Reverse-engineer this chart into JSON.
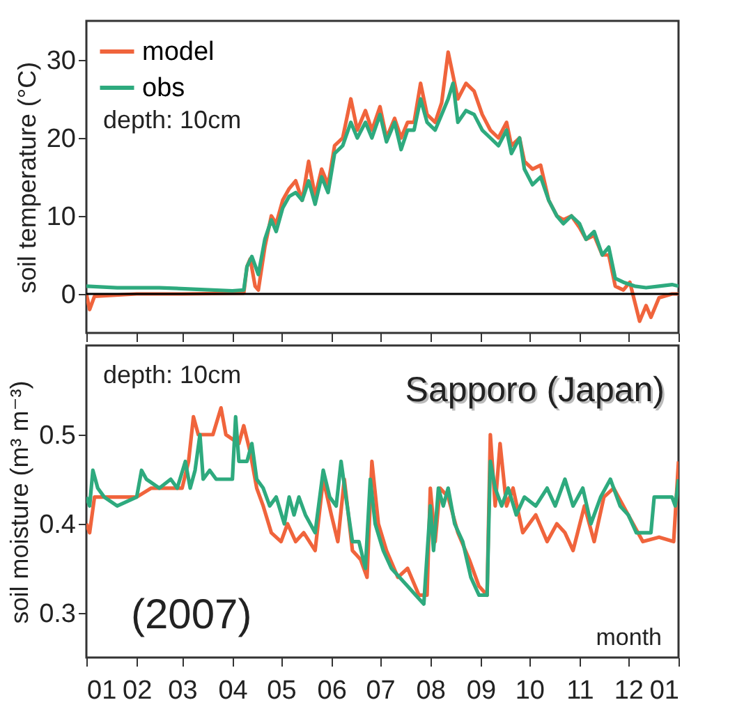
{
  "chart_data": [
    {
      "type": "line",
      "ylabel": "soil temperature (°C)",
      "ylim": [
        -5,
        35
      ],
      "yticks": [
        0,
        10,
        20,
        30
      ],
      "xlim": [
        "2007-01-01",
        "2008-01-01"
      ],
      "xticks": [
        {
          "value": "2007-01-01",
          "label": null
        },
        {
          "value": "2007-02-01",
          "label": null
        },
        {
          "value": "2007-03-01",
          "label": null
        },
        {
          "value": "2007-04-01",
          "label": null
        },
        {
          "value": "2007-05-01",
          "label": null
        },
        {
          "value": "2007-06-01",
          "label": null
        },
        {
          "value": "2007-07-01",
          "label": null
        },
        {
          "value": "2007-08-01",
          "label": null
        },
        {
          "value": "2007-09-01",
          "label": null
        },
        {
          "value": "2007-10-01",
          "label": null
        },
        {
          "value": "2007-11-01",
          "label": null
        },
        {
          "value": "2007-12-01",
          "label": null
        },
        {
          "value": "2008-01-01",
          "label": null
        }
      ],
      "tick_labels": "y",
      "grid": false,
      "legend": "top left",
      "annotations": [
        "depth: 10cm"
      ],
      "ref_lines": [
        {
          "axis": "y",
          "value": 0,
          "color": "#000000"
        }
      ],
      "series": [
        {
          "name": "model",
          "color": "#f0643c",
          "x": [
            "2007-01-01",
            "2007-01-03",
            "2007-01-06",
            "2007-02-01",
            "2007-03-01",
            "2007-04-08",
            "2007-04-10",
            "2007-04-12",
            "2007-04-15",
            "2007-04-17",
            "2007-04-21",
            "2007-04-25",
            "2007-04-28",
            "2007-05-02",
            "2007-05-06",
            "2007-05-10",
            "2007-05-14",
            "2007-05-18",
            "2007-05-22",
            "2007-05-26",
            "2007-05-30",
            "2007-06-03",
            "2007-06-08",
            "2007-06-13",
            "2007-06-17",
            "2007-06-22",
            "2007-06-26",
            "2007-07-01",
            "2007-07-05",
            "2007-07-10",
            "2007-07-14",
            "2007-07-18",
            "2007-07-22",
            "2007-07-26",
            "2007-07-30",
            "2007-08-04",
            "2007-08-08",
            "2007-08-12",
            "2007-08-15",
            "2007-08-18",
            "2007-08-23",
            "2007-08-28",
            "2007-09-02",
            "2007-09-07",
            "2007-09-12",
            "2007-09-17",
            "2007-09-20",
            "2007-09-25",
            "2007-09-28",
            "2007-10-03",
            "2007-10-08",
            "2007-10-13",
            "2007-10-18",
            "2007-10-22",
            "2007-10-27",
            "2007-11-01",
            "2007-11-05",
            "2007-11-10",
            "2007-11-15",
            "2007-11-19",
            "2007-11-23",
            "2007-11-28",
            "2007-12-02",
            "2007-12-05",
            "2007-12-08",
            "2007-12-12",
            "2007-12-15",
            "2007-12-20",
            "2007-12-28",
            "2008-01-01"
          ],
          "values": [
            0,
            -2,
            -0.3,
            0,
            0,
            0.1,
            3.5,
            4.5,
            1,
            0.5,
            6,
            10,
            9,
            12,
            13.5,
            14.5,
            12,
            17,
            12.5,
            16,
            14,
            19,
            20,
            25,
            21,
            23.5,
            21,
            24,
            20,
            22.5,
            20,
            22,
            22,
            27,
            23,
            22,
            24.5,
            31,
            28,
            25,
            27,
            26,
            23,
            21,
            20,
            22,
            19,
            20,
            17,
            16,
            16.5,
            12,
            10,
            9.5,
            10,
            8.5,
            7,
            7.5,
            5,
            5,
            1,
            0.5,
            1.5,
            -1,
            -3.5,
            -1.5,
            -3,
            -0.5,
            0,
            0
          ]
        },
        {
          "name": "obs",
          "color": "#2eaa7e",
          "x": [
            "2007-01-01",
            "2007-01-20",
            "2007-02-15",
            "2007-03-10",
            "2007-04-01",
            "2007-04-08",
            "2007-04-10",
            "2007-04-13",
            "2007-04-17",
            "2007-04-21",
            "2007-04-25",
            "2007-04-28",
            "2007-05-02",
            "2007-05-06",
            "2007-05-10",
            "2007-05-14",
            "2007-05-18",
            "2007-05-22",
            "2007-05-26",
            "2007-05-30",
            "2007-06-03",
            "2007-06-08",
            "2007-06-13",
            "2007-06-17",
            "2007-06-22",
            "2007-06-26",
            "2007-07-01",
            "2007-07-05",
            "2007-07-10",
            "2007-07-14",
            "2007-07-18",
            "2007-07-22",
            "2007-07-26",
            "2007-07-30",
            "2007-08-04",
            "2007-08-08",
            "2007-08-12",
            "2007-08-15",
            "2007-08-18",
            "2007-08-23",
            "2007-08-28",
            "2007-09-02",
            "2007-09-07",
            "2007-09-12",
            "2007-09-17",
            "2007-09-20",
            "2007-09-25",
            "2007-09-28",
            "2007-10-03",
            "2007-10-08",
            "2007-10-13",
            "2007-10-18",
            "2007-10-22",
            "2007-10-27",
            "2007-11-01",
            "2007-11-05",
            "2007-11-10",
            "2007-11-15",
            "2007-11-19",
            "2007-11-23",
            "2007-11-28",
            "2007-12-05",
            "2007-12-12",
            "2007-12-20",
            "2007-12-28",
            "2008-01-01"
          ],
          "values": [
            1,
            0.8,
            0.8,
            0.6,
            0.4,
            0.5,
            3.5,
            4.8,
            2.5,
            7,
            9.5,
            8,
            11,
            12.5,
            13,
            12,
            14.5,
            11.5,
            15,
            13,
            18,
            19,
            22,
            20,
            22,
            20,
            23,
            19.5,
            22,
            18.5,
            21,
            21,
            25,
            22,
            21,
            23,
            25,
            27,
            22,
            23.5,
            23,
            21,
            20,
            19,
            21,
            18,
            20,
            16,
            14,
            15,
            12,
            10,
            9,
            10,
            9,
            7,
            8,
            5,
            6,
            2,
            1.5,
            1,
            0.8,
            1,
            1.2,
            1
          ]
        }
      ]
    },
    {
      "type": "line",
      "ylabel": "soil moisture (m³ m⁻³)",
      "ylim": [
        0.25,
        0.6
      ],
      "yticks": [
        0.3,
        0.4,
        0.5
      ],
      "xlim": [
        "2007-01-01",
        "2008-01-01"
      ],
      "xticks": [
        {
          "value": "2007-01-01",
          "label": "01"
        },
        {
          "value": "2007-02-01",
          "label": "02"
        },
        {
          "value": "2007-03-01",
          "label": "03"
        },
        {
          "value": "2007-04-01",
          "label": "04"
        },
        {
          "value": "2007-05-01",
          "label": "05"
        },
        {
          "value": "2007-06-01",
          "label": "06"
        },
        {
          "value": "2007-07-01",
          "label": "07"
        },
        {
          "value": "2007-08-01",
          "label": "08"
        },
        {
          "value": "2007-09-01",
          "label": "09"
        },
        {
          "value": "2007-10-01",
          "label": "10"
        },
        {
          "value": "2007-11-01",
          "label": "11"
        },
        {
          "value": "2007-12-01",
          "label": "12"
        },
        {
          "value": "2008-01-01",
          "label": "01"
        }
      ],
      "grid": false,
      "annotations": [
        "depth: 10cm",
        "Sapporo (Japan)",
        "(2007)",
        "month"
      ],
      "series": [
        {
          "color": "#f0643c",
          "x": [
            "2007-01-01",
            "2007-01-03",
            "2007-01-06",
            "2007-01-20",
            "2007-02-01",
            "2007-02-10",
            "2007-02-25",
            "2007-03-01",
            "2007-03-05",
            "2007-03-08",
            "2007-03-11",
            "2007-03-20",
            "2007-03-25",
            "2007-03-28",
            "2007-04-05",
            "2007-04-08",
            "2007-04-12",
            "2007-04-16",
            "2007-04-20",
            "2007-04-25",
            "2007-05-01",
            "2007-05-05",
            "2007-05-10",
            "2007-05-15",
            "2007-05-22",
            "2007-05-27",
            "2007-06-01",
            "2007-06-05",
            "2007-06-09",
            "2007-06-14",
            "2007-06-19",
            "2007-06-23",
            "2007-06-26",
            "2007-06-30",
            "2007-07-05",
            "2007-07-12",
            "2007-07-18",
            "2007-07-25",
            "2007-07-30",
            "2007-08-01",
            "2007-08-04",
            "2007-08-07",
            "2007-08-12",
            "2007-08-18",
            "2007-08-25",
            "2007-08-31",
            "2007-09-05",
            "2007-09-07",
            "2007-09-10",
            "2007-09-13",
            "2007-09-17",
            "2007-09-21",
            "2007-09-27",
            "2007-10-05",
            "2007-10-12",
            "2007-10-18",
            "2007-10-23",
            "2007-10-28",
            "2007-11-04",
            "2007-11-10",
            "2007-11-16",
            "2007-11-22",
            "2007-11-28",
            "2007-12-04",
            "2007-12-10",
            "2007-12-20",
            "2007-12-29",
            "2008-01-01"
          ],
          "values": [
            0.4,
            0.39,
            0.43,
            0.43,
            0.43,
            0.44,
            0.44,
            0.44,
            0.47,
            0.52,
            0.5,
            0.5,
            0.53,
            0.5,
            0.49,
            0.51,
            0.48,
            0.44,
            0.42,
            0.39,
            0.38,
            0.4,
            0.38,
            0.39,
            0.37,
            0.45,
            0.41,
            0.38,
            0.45,
            0.37,
            0.36,
            0.34,
            0.47,
            0.4,
            0.37,
            0.34,
            0.35,
            0.32,
            0.32,
            0.44,
            0.38,
            0.44,
            0.43,
            0.39,
            0.36,
            0.33,
            0.32,
            0.5,
            0.42,
            0.49,
            0.42,
            0.44,
            0.39,
            0.41,
            0.38,
            0.4,
            0.39,
            0.37,
            0.42,
            0.38,
            0.43,
            0.44,
            0.42,
            0.4,
            0.38,
            0.385,
            0.38,
            0.47
          ]
        },
        {
          "color": "#2eaa7e",
          "x": [
            "2007-01-01",
            "2007-01-03",
            "2007-01-05",
            "2007-01-08",
            "2007-01-12",
            "2007-01-20",
            "2007-02-01",
            "2007-02-04",
            "2007-02-07",
            "2007-02-15",
            "2007-02-22",
            "2007-02-26",
            "2007-03-03",
            "2007-03-06",
            "2007-03-09",
            "2007-03-12",
            "2007-03-14",
            "2007-03-18",
            "2007-03-22",
            "2007-04-01",
            "2007-04-03",
            "2007-04-05",
            "2007-04-10",
            "2007-04-13",
            "2007-04-16",
            "2007-04-20",
            "2007-04-24",
            "2007-04-28",
            "2007-05-03",
            "2007-05-06",
            "2007-05-09",
            "2007-05-12",
            "2007-05-16",
            "2007-05-22",
            "2007-05-27",
            "2007-05-31",
            "2007-06-04",
            "2007-06-07",
            "2007-06-10",
            "2007-06-14",
            "2007-06-18",
            "2007-06-22",
            "2007-06-25",
            "2007-06-28",
            "2007-07-03",
            "2007-07-08",
            "2007-07-13",
            "2007-07-18",
            "2007-07-23",
            "2007-07-28",
            "2007-08-01",
            "2007-08-03",
            "2007-08-06",
            "2007-08-09",
            "2007-08-12",
            "2007-08-16",
            "2007-08-21",
            "2007-08-26",
            "2007-08-31",
            "2007-09-05",
            "2007-09-07",
            "2007-09-10",
            "2007-09-14",
            "2007-09-18",
            "2007-09-23",
            "2007-09-28",
            "2007-10-05",
            "2007-10-12",
            "2007-10-17",
            "2007-10-23",
            "2007-10-28",
            "2007-11-03",
            "2007-11-08",
            "2007-11-14",
            "2007-11-20",
            "2007-11-26",
            "2007-12-01",
            "2007-12-06",
            "2007-12-15",
            "2007-12-17",
            "2007-12-28",
            "2007-12-30",
            "2008-01-01"
          ],
          "values": [
            0.43,
            0.42,
            0.46,
            0.44,
            0.43,
            0.42,
            0.43,
            0.46,
            0.45,
            0.44,
            0.45,
            0.44,
            0.47,
            0.44,
            0.46,
            0.5,
            0.45,
            0.46,
            0.45,
            0.45,
            0.52,
            0.47,
            0.47,
            0.49,
            0.45,
            0.44,
            0.42,
            0.43,
            0.4,
            0.43,
            0.41,
            0.43,
            0.41,
            0.39,
            0.46,
            0.43,
            0.42,
            0.47,
            0.43,
            0.38,
            0.38,
            0.35,
            0.45,
            0.4,
            0.37,
            0.35,
            0.34,
            0.33,
            0.32,
            0.31,
            0.42,
            0.37,
            0.44,
            0.42,
            0.44,
            0.4,
            0.38,
            0.34,
            0.32,
            0.32,
            0.47,
            0.44,
            0.42,
            0.44,
            0.41,
            0.43,
            0.42,
            0.44,
            0.42,
            0.45,
            0.42,
            0.44,
            0.4,
            0.43,
            0.45,
            0.42,
            0.41,
            0.39,
            0.39,
            0.43,
            0.43,
            0.42,
            0.45
          ]
        }
      ]
    }
  ]
}
